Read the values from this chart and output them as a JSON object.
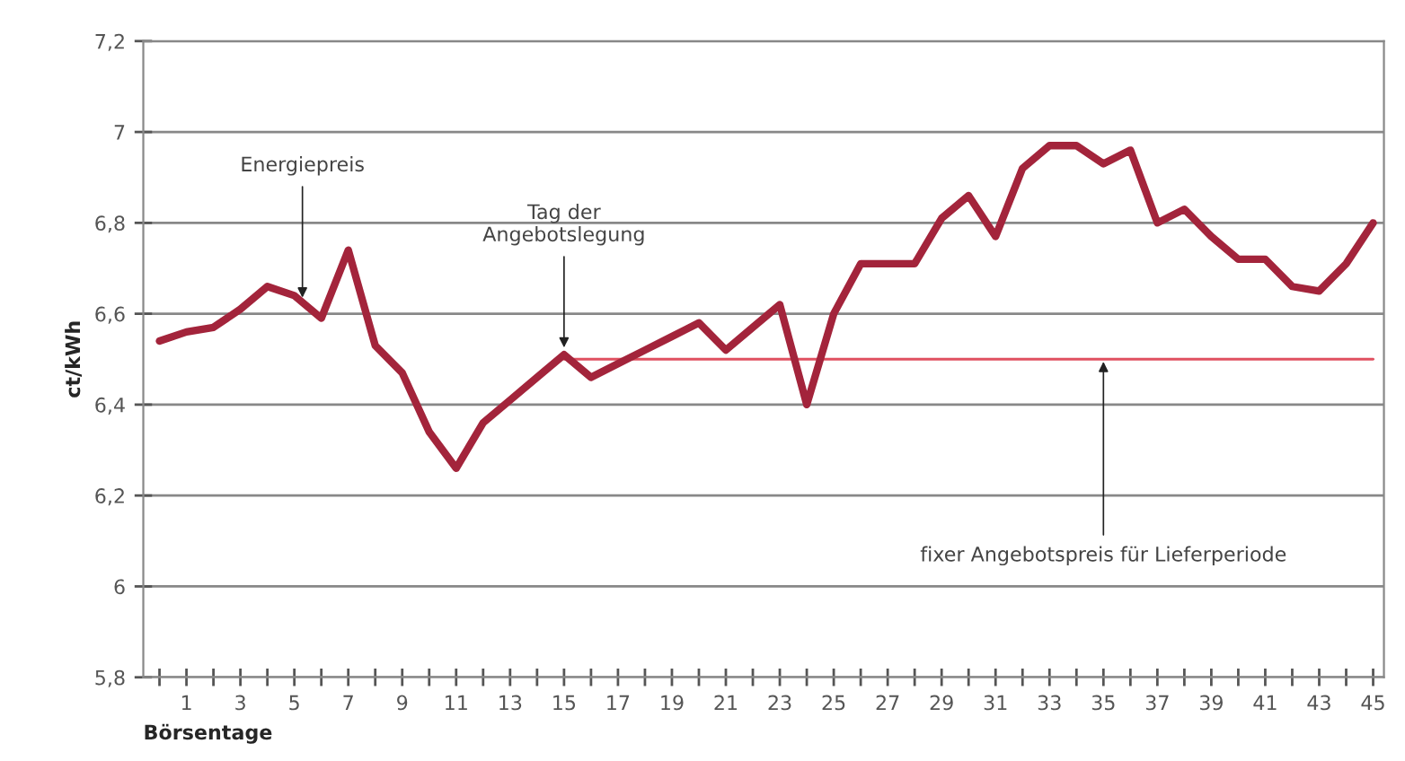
{
  "chart_data": {
    "type": "line",
    "xlabel": "Börsentage",
    "ylabel": "ct/kWh",
    "x": [
      0,
      1,
      2,
      3,
      4,
      5,
      6,
      7,
      8,
      9,
      10,
      11,
      12,
      13,
      14,
      15,
      16,
      17,
      18,
      19,
      20,
      21,
      22,
      23,
      24,
      25,
      26,
      27,
      28,
      29,
      30,
      31,
      32,
      33,
      34,
      35,
      36,
      37,
      38,
      39,
      40,
      41,
      42,
      43,
      44,
      45
    ],
    "series": [
      {
        "color": "#a3243b",
        "values": [
          6.54,
          6.56,
          6.57,
          6.61,
          6.66,
          6.64,
          6.59,
          6.74,
          6.53,
          6.47,
          6.34,
          6.26,
          6.36,
          6.41,
          6.46,
          6.51,
          6.46,
          6.49,
          6.52,
          6.55,
          6.58,
          6.52,
          6.57,
          6.62,
          6.4,
          6.6,
          6.71,
          6.71,
          6.71,
          6.81,
          6.86,
          6.77,
          6.92,
          6.97,
          6.97,
          6.93,
          6.96,
          6.8,
          6.83,
          6.77,
          6.72,
          6.72,
          6.66,
          6.65,
          6.71,
          6.8
        ]
      },
      {
        "color": "#e05060",
        "x": [
          15,
          45
        ],
        "values": [
          6.5,
          6.5
        ]
      }
    ],
    "xlim": [
      -0.6,
      45.4
    ],
    "ylim": [
      5.8,
      7.2
    ],
    "xticks": [
      {
        "value": 0,
        "label": null
      },
      1,
      {
        "value": 2,
        "label": null
      },
      3,
      {
        "value": 4,
        "label": null
      },
      5,
      {
        "value": 6,
        "label": null
      },
      7,
      {
        "value": 8,
        "label": null
      },
      9,
      {
        "value": 10,
        "label": null
      },
      11,
      {
        "value": 12,
        "label": null
      },
      13,
      {
        "value": 14,
        "label": null
      },
      15,
      {
        "value": 16,
        "label": null
      },
      17,
      {
        "value": 18,
        "label": null
      },
      19,
      {
        "value": 20,
        "label": null
      },
      21,
      {
        "value": 22,
        "label": null
      },
      23,
      {
        "value": 24,
        "label": null
      },
      25,
      {
        "value": 26,
        "label": null
      },
      27,
      {
        "value": 28,
        "label": null
      },
      29,
      {
        "value": 30,
        "label": null
      },
      31,
      {
        "value": 32,
        "label": null
      },
      33,
      {
        "value": 34,
        "label": null
      },
      35,
      {
        "value": 36,
        "label": null
      },
      37,
      {
        "value": 38,
        "label": null
      },
      39,
      {
        "value": 40,
        "label": null
      },
      41,
      {
        "value": 42,
        "label": null
      },
      43,
      {
        "value": 44,
        "label": null
      },
      45
    ],
    "yticks": [
      {
        "value": 5.8,
        "label": "5,8"
      },
      {
        "value": 6,
        "label": "6"
      },
      {
        "value": 6.2,
        "label": "6,2"
      },
      {
        "value": 6.4,
        "label": "6,4"
      },
      {
        "value": 6.6,
        "label": "6,6"
      },
      {
        "value": 6.8,
        "label": "6,8"
      },
      {
        "value": 7,
        "label": "7"
      },
      {
        "value": 7.2,
        "label": "7,2"
      }
    ],
    "grid": "y",
    "legend": false,
    "marker": "none",
    "line_style": "solid",
    "annotations": [
      {
        "text": "Energiepreis",
        "x": 5.3,
        "y": 6.63
      },
      {
        "text": "Tag der\nAngebotslegung",
        "x": 15,
        "y": 6.52
      },
      {
        "text": "fixer Angebotspreis für Lieferperiode",
        "x": 35,
        "y": 6.5
      }
    ]
  }
}
